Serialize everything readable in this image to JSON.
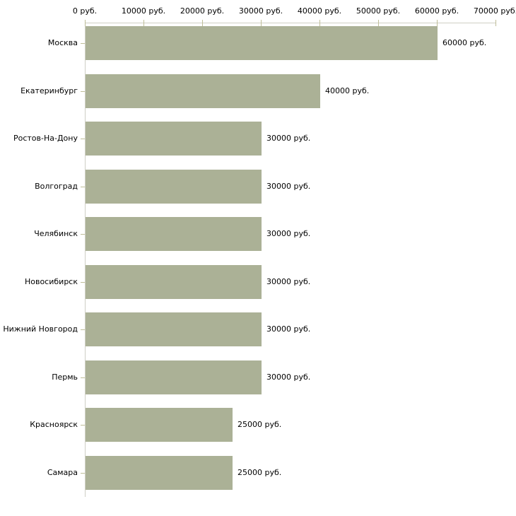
{
  "chart_data": {
    "type": "bar",
    "orientation": "horizontal",
    "title": "",
    "xlabel": "",
    "ylabel": "",
    "xlim": [
      0,
      70000
    ],
    "x_tick_step": 10000,
    "x_tick_labels": [
      "0 руб.",
      "10000 руб.",
      "20000 руб.",
      "30000 руб.",
      "40000 руб.",
      "50000 руб.",
      "60000 руб.",
      "70000 руб."
    ],
    "categories": [
      "Москва",
      "Екатеринбург",
      "Ростов-На-Дону",
      "Волгоград",
      "Челябинск",
      "Новосибирск",
      "Нижний Новгород",
      "Пермь",
      "Красноярск",
      "Самара"
    ],
    "values": [
      60000,
      40000,
      30000,
      30000,
      30000,
      30000,
      30000,
      30000,
      25000,
      25000
    ],
    "value_labels": [
      "60000 руб.",
      "40000 руб.",
      "30000 руб.",
      "30000 руб.",
      "30000 руб.",
      "30000 руб.",
      "30000 руб.",
      "30000 руб.",
      "25000 руб.",
      "25000 руб."
    ],
    "grid": false,
    "legend": false,
    "bar_color": "#abb196",
    "axis_line_color": "#cfcfc5",
    "tick_color": "#bfbe99",
    "text_color": "#000000"
  }
}
